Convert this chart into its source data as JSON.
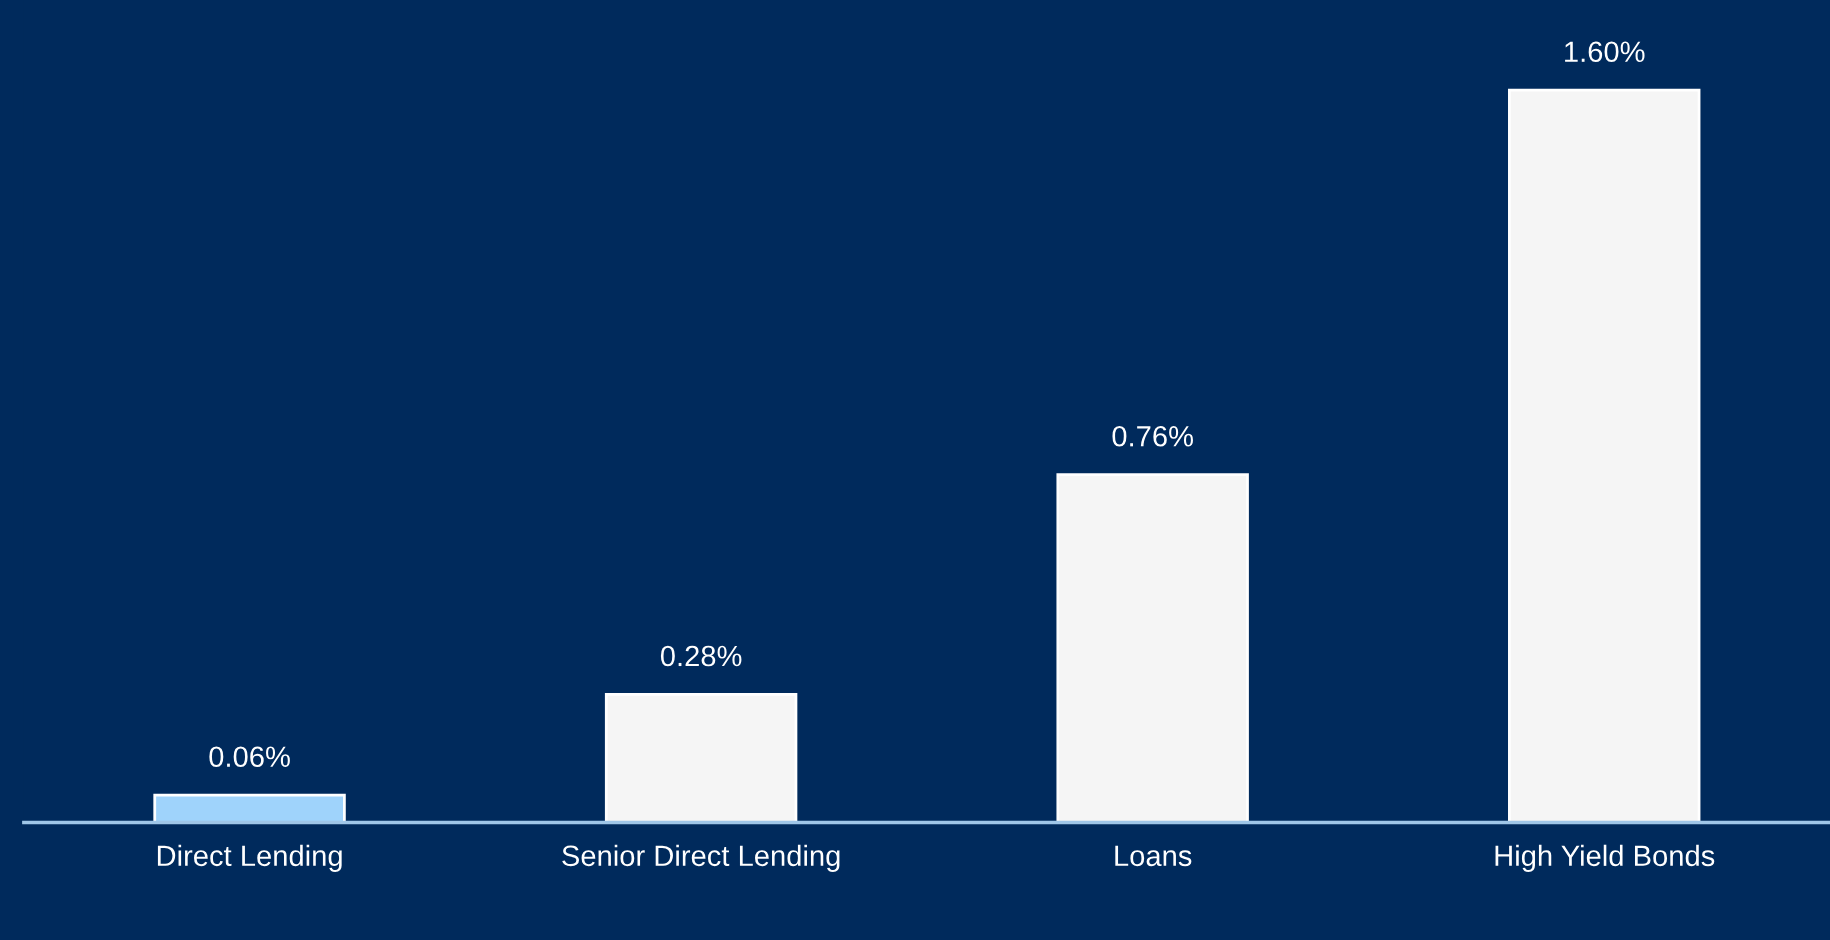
{
  "chart_data": {
    "type": "bar",
    "categories": [
      "Direct Lending",
      "Senior Direct Lending",
      "Loans",
      "High Yield Bonds"
    ],
    "values": [
      0.06,
      0.28,
      0.76,
      1.6
    ],
    "colors": [
      "#9fd3fb",
      "#f5f5f5",
      "#f5f5f5",
      "#f5f5f5"
    ],
    "value_labels": [
      "0.06%",
      "0.28%",
      "0.76%",
      "1.60%"
    ],
    "tick_labels": "x",
    "grid": false,
    "legend": false
  }
}
